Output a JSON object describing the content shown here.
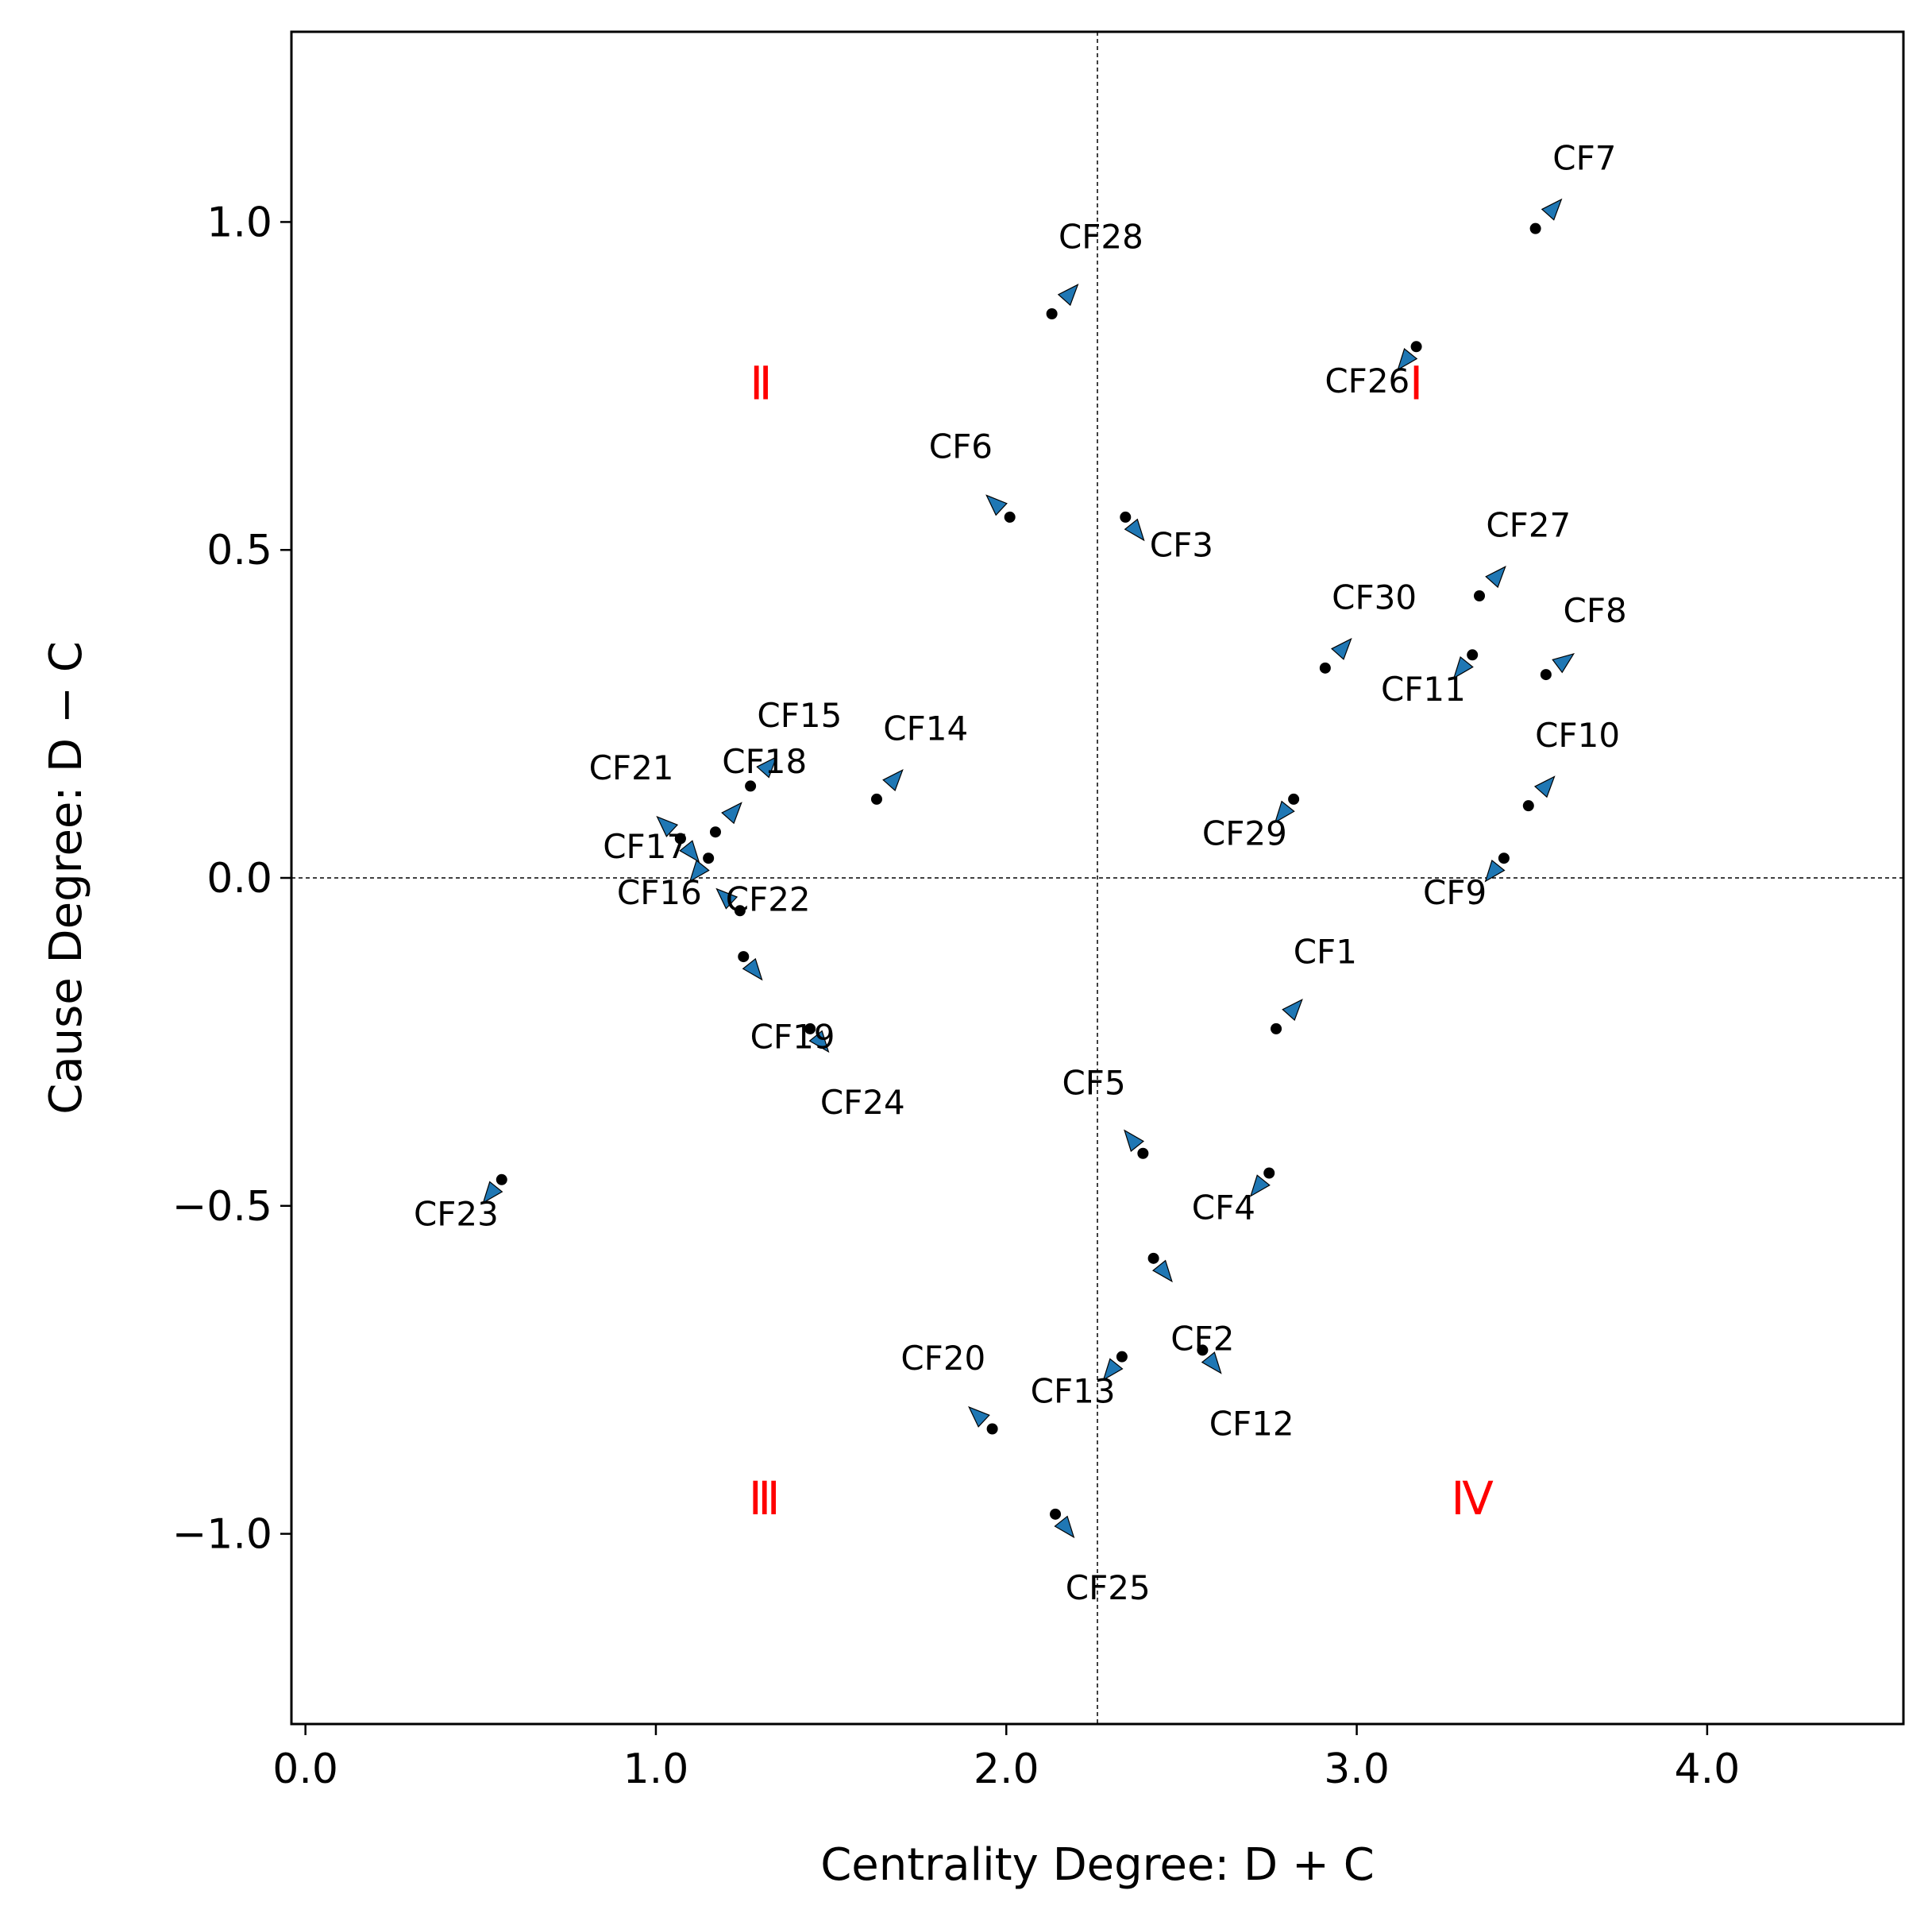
{
  "chart_data": {
    "type": "scatter",
    "title": "",
    "xlabel": "Centrality Degree: D + C",
    "ylabel": "Cause Degree: D − C",
    "xlim": [
      -0.04,
      4.56
    ],
    "ylim": [
      -1.29,
      1.29
    ],
    "xticks": [
      0.0,
      1.0,
      2.0,
      3.0,
      4.0
    ],
    "xtick_labels": [
      "0.0",
      "1.0",
      "2.0",
      "3.0",
      "4.0"
    ],
    "yticks": [
      1.0,
      0.5,
      0.0,
      -0.5,
      -1.0
    ],
    "ytick_labels": [
      "1.0",
      "0.5",
      "0.0",
      "−0.5",
      "−1.0"
    ],
    "grid": false,
    "reference_lines": {
      "x": 2.26,
      "y": 0.0
    },
    "marker_color": "#1f77b4",
    "dot_color": "#000000",
    "quadrant_color": "#ff0000",
    "quadrants": [
      {
        "label": "Ⅰ",
        "x": 3.17,
        "y": 0.73
      },
      {
        "label": "Ⅱ",
        "x": 1.3,
        "y": 0.73
      },
      {
        "label": "Ⅲ",
        "x": 1.31,
        "y": -0.97
      },
      {
        "label": "Ⅳ",
        "x": 3.33,
        "y": -0.97
      }
    ],
    "points": [
      {
        "name": "CF1",
        "x": 2.77,
        "y": -0.23,
        "dx": 0.05,
        "dy": 0.03,
        "lx": 2.91,
        "ly": -0.13
      },
      {
        "name": "CF2",
        "x": 2.42,
        "y": -0.58,
        "dx": 0.03,
        "dy": -0.02,
        "lx": 2.56,
        "ly": -0.72
      },
      {
        "name": "CF3",
        "x": 2.34,
        "y": 0.55,
        "dx": 0.03,
        "dy": -0.02,
        "lx": 2.5,
        "ly": 0.49
      },
      {
        "name": "CF4",
        "x": 2.75,
        "y": -0.45,
        "dx": -0.03,
        "dy": -0.02,
        "lx": 2.62,
        "ly": -0.52
      },
      {
        "name": "CF5",
        "x": 2.39,
        "y": -0.42,
        "dx": -0.03,
        "dy": 0.02,
        "lx": 2.25,
        "ly": -0.33
      },
      {
        "name": "CF6",
        "x": 2.01,
        "y": 0.55,
        "dx": -0.04,
        "dy": 0.02,
        "lx": 1.87,
        "ly": 0.64
      },
      {
        "name": "CF7",
        "x": 3.51,
        "y": 0.99,
        "dx": 0.05,
        "dy": 0.03,
        "lx": 3.65,
        "ly": 1.08
      },
      {
        "name": "CF8",
        "x": 3.54,
        "y": 0.31,
        "dx": 0.05,
        "dy": 0.02,
        "lx": 3.68,
        "ly": 0.39
      },
      {
        "name": "CF9",
        "x": 3.42,
        "y": 0.03,
        "dx": -0.03,
        "dy": -0.02,
        "lx": 3.28,
        "ly": -0.04
      },
      {
        "name": "CF10",
        "x": 3.49,
        "y": 0.11,
        "dx": 0.05,
        "dy": 0.03,
        "lx": 3.63,
        "ly": 0.2
      },
      {
        "name": "CF11",
        "x": 3.33,
        "y": 0.34,
        "dx": -0.03,
        "dy": -0.02,
        "lx": 3.19,
        "ly": 0.27
      },
      {
        "name": "CF12",
        "x": 2.56,
        "y": -0.72,
        "dx": 0.03,
        "dy": -0.02,
        "lx": 2.7,
        "ly": -0.85
      },
      {
        "name": "CF13",
        "x": 2.33,
        "y": -0.73,
        "dx": -0.03,
        "dy": -0.02,
        "lx": 2.19,
        "ly": -0.8
      },
      {
        "name": "CF14",
        "x": 1.63,
        "y": 0.12,
        "dx": 0.05,
        "dy": 0.03,
        "lx": 1.77,
        "ly": 0.21
      },
      {
        "name": "CF15",
        "x": 1.27,
        "y": 0.14,
        "dx": 0.05,
        "dy": 0.03,
        "lx": 1.41,
        "ly": 0.23
      },
      {
        "name": "CF16",
        "x": 1.15,
        "y": 0.03,
        "dx": -0.03,
        "dy": -0.02,
        "lx": 1.01,
        "ly": -0.04
      },
      {
        "name": "CF17",
        "x": 1.07,
        "y": 0.06,
        "dx": 0.03,
        "dy": -0.02,
        "lx": 0.97,
        "ly": 0.03
      },
      {
        "name": "CF18",
        "x": 1.17,
        "y": 0.07,
        "dx": 0.05,
        "dy": 0.03,
        "lx": 1.31,
        "ly": 0.16
      },
      {
        "name": "CF19",
        "x": 1.25,
        "y": -0.12,
        "dx": 0.03,
        "dy": -0.02,
        "lx": 1.39,
        "ly": -0.26
      },
      {
        "name": "CF20",
        "x": 1.96,
        "y": -0.84,
        "dx": -0.04,
        "dy": 0.02,
        "lx": 1.82,
        "ly": -0.75
      },
      {
        "name": "CF21",
        "x": 1.07,
        "y": 0.06,
        "dx": -0.04,
        "dy": 0.02,
        "lx": 0.93,
        "ly": 0.15
      },
      {
        "name": "CF22",
        "x": 1.24,
        "y": -0.05,
        "dx": -0.04,
        "dy": 0.02,
        "lx": 1.32,
        "ly": -0.05
      },
      {
        "name": "CF23",
        "x": 0.56,
        "y": -0.46,
        "dx": -0.03,
        "dy": -0.02,
        "lx": 0.43,
        "ly": -0.53
      },
      {
        "name": "CF24",
        "x": 1.44,
        "y": -0.23,
        "dx": 0.03,
        "dy": -0.02,
        "lx": 1.59,
        "ly": -0.36
      },
      {
        "name": "CF25",
        "x": 2.14,
        "y": -0.97,
        "dx": 0.03,
        "dy": -0.02,
        "lx": 2.29,
        "ly": -1.1
      },
      {
        "name": "CF26",
        "x": 3.17,
        "y": 0.81,
        "dx": -0.03,
        "dy": -0.02,
        "lx": 3.03,
        "ly": 0.74
      },
      {
        "name": "CF27",
        "x": 3.35,
        "y": 0.43,
        "dx": 0.05,
        "dy": 0.03,
        "lx": 3.49,
        "ly": 0.52
      },
      {
        "name": "CF28",
        "x": 2.13,
        "y": 0.86,
        "dx": 0.05,
        "dy": 0.03,
        "lx": 2.27,
        "ly": 0.96
      },
      {
        "name": "CF29",
        "x": 2.82,
        "y": 0.12,
        "dx": -0.03,
        "dy": -0.02,
        "lx": 2.68,
        "ly": 0.05
      },
      {
        "name": "CF30",
        "x": 2.91,
        "y": 0.32,
        "dx": 0.05,
        "dy": 0.03,
        "lx": 3.05,
        "ly": 0.41
      }
    ]
  }
}
